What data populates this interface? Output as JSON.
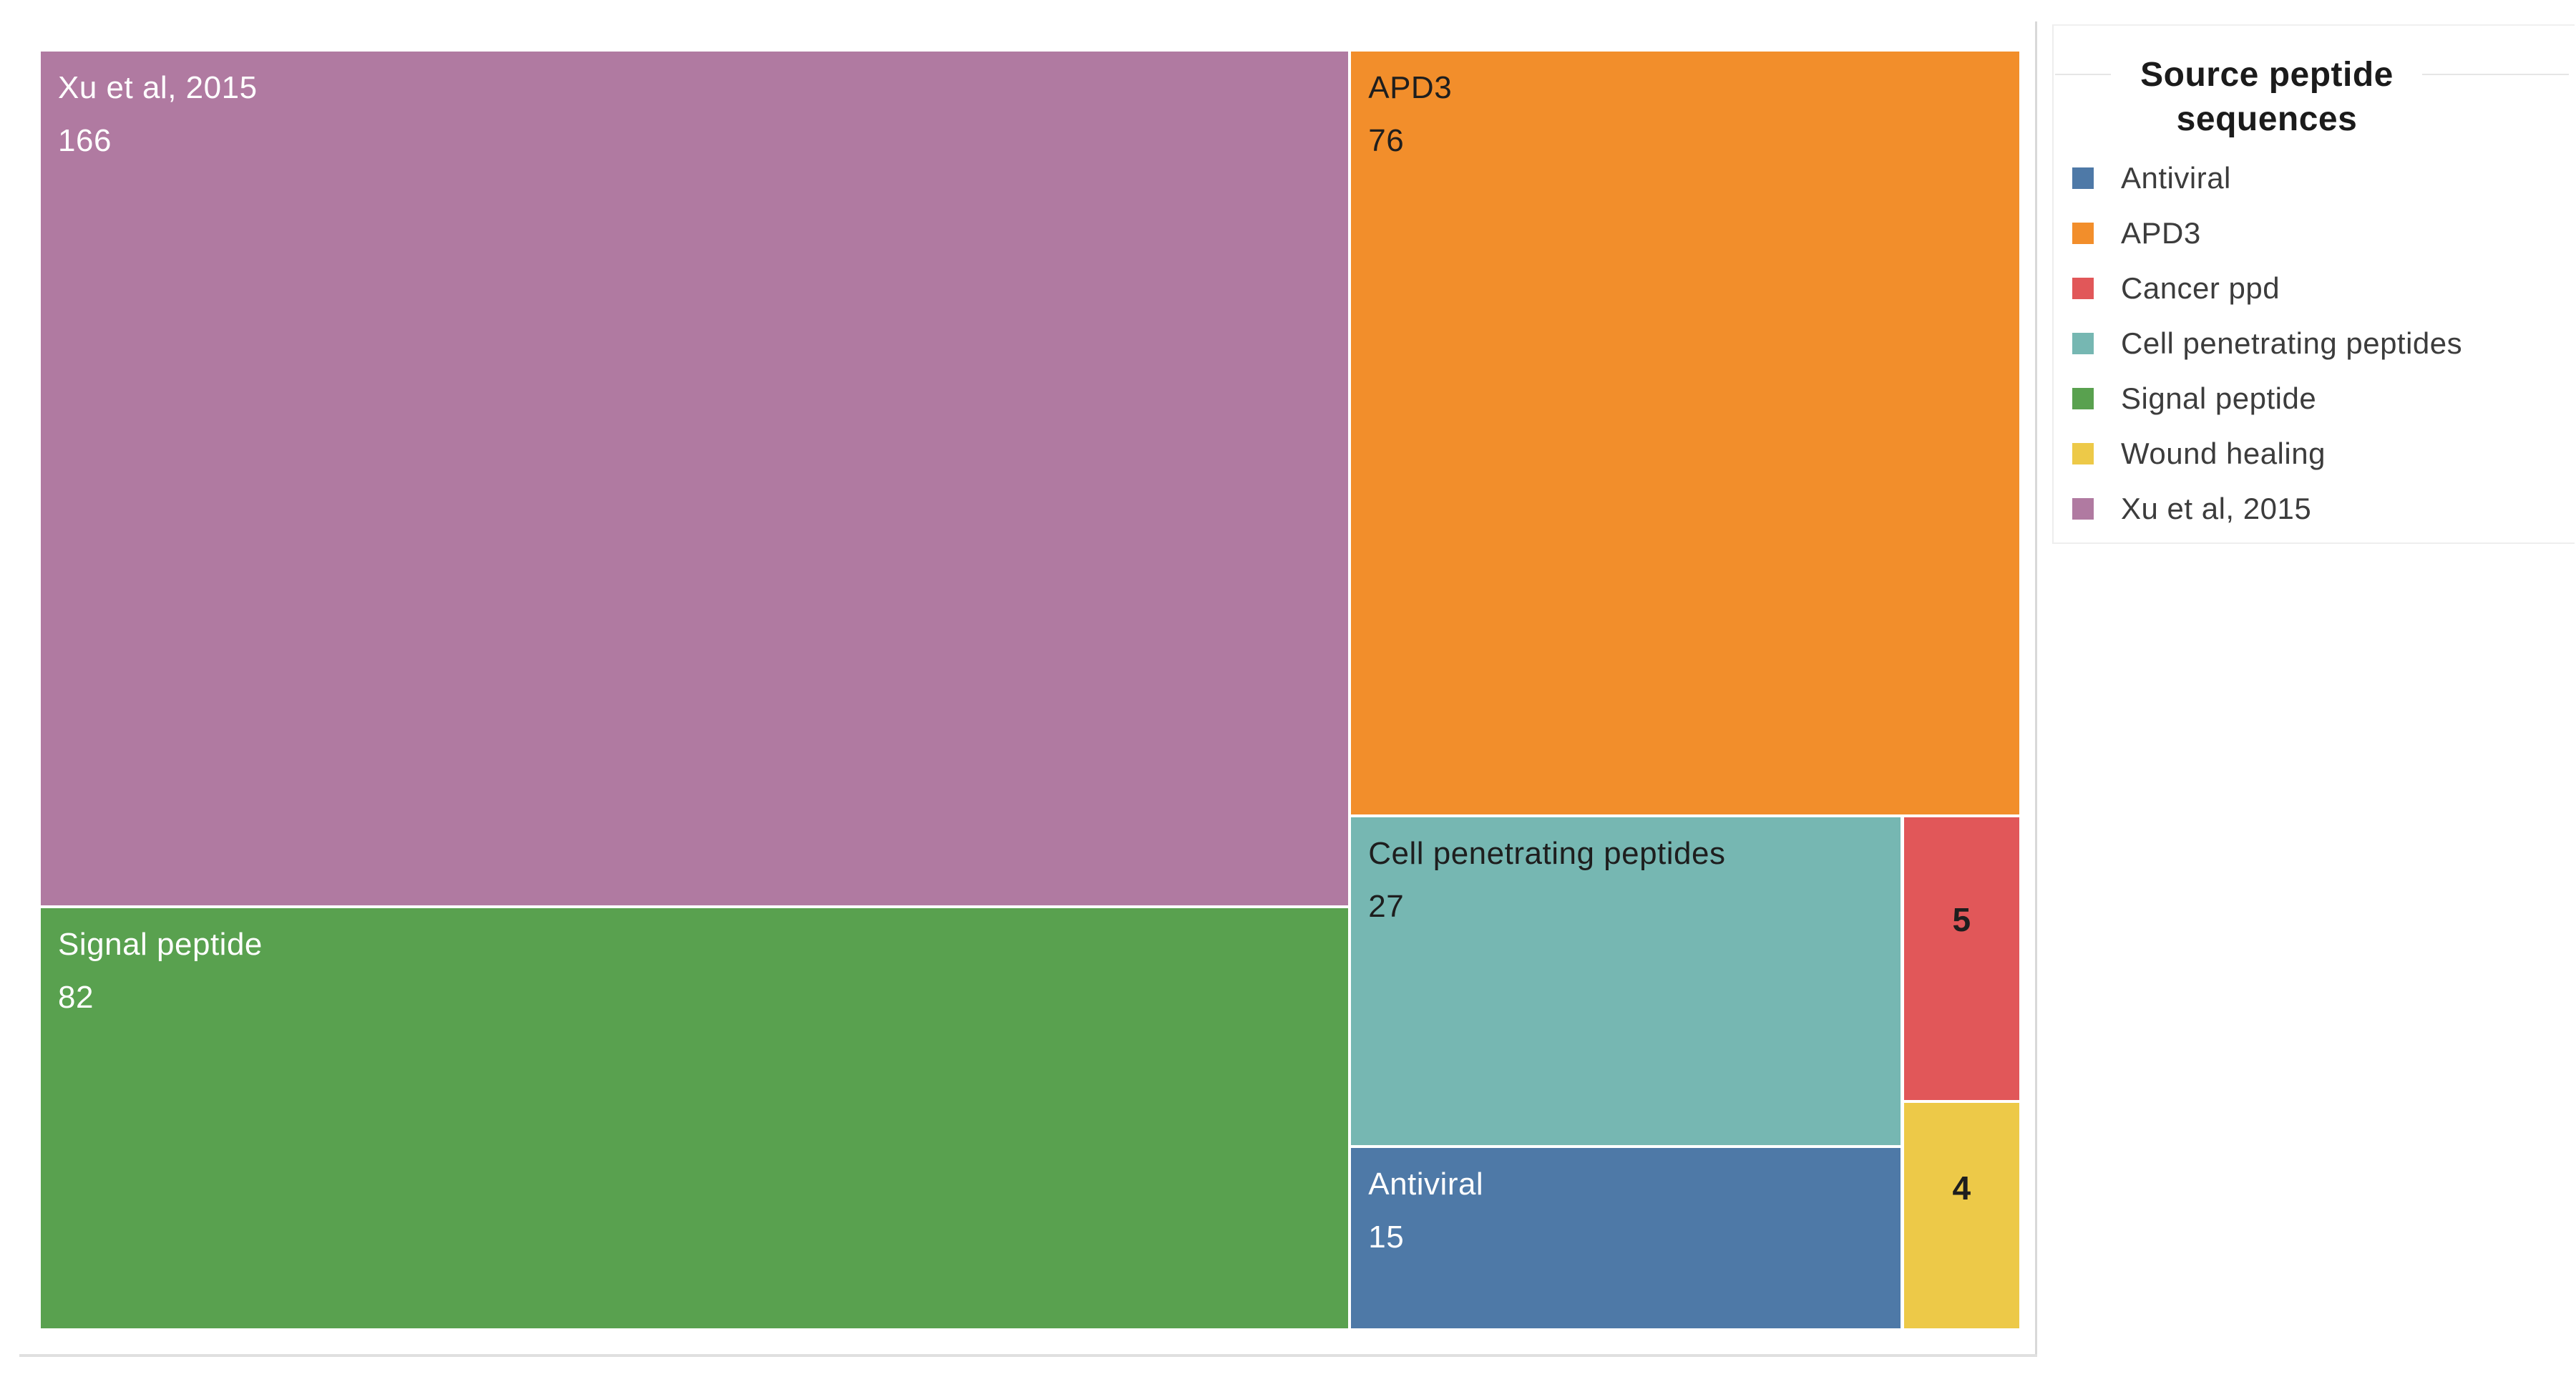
{
  "legend": {
    "title_line1": "Source peptide",
    "title_line2": "sequences",
    "items": [
      {
        "label": "Antiviral",
        "color": "#4e79a7"
      },
      {
        "label": "APD3",
        "color": "#f28e2b"
      },
      {
        "label": "Cancer ppd",
        "color": "#e15759"
      },
      {
        "label": "Cell penetrating peptides",
        "color": "#76b7b2"
      },
      {
        "label": "Signal peptide",
        "color": "#59a14f"
      },
      {
        "label": "Wound healing",
        "color": "#edc948"
      },
      {
        "label": "Xu et al, 2015",
        "color": "#b07aa1"
      }
    ]
  },
  "chart_data": {
    "type": "treemap",
    "title": "Source peptide sequences",
    "legend_position": "right",
    "items": [
      {
        "name": "Xu et al, 2015",
        "value": 166,
        "color": "#b07aa1",
        "text_color": "#ffffff",
        "label_mode": "corner"
      },
      {
        "name": "Signal peptide",
        "value": 82,
        "color": "#59a14f",
        "text_color": "#ffffff",
        "label_mode": "corner"
      },
      {
        "name": "APD3",
        "value": 76,
        "color": "#f28e2b",
        "text_color": "#1e1e1e",
        "label_mode": "corner"
      },
      {
        "name": "Cell penetrating peptides",
        "value": 27,
        "color": "#76b7b2",
        "text_color": "#1e1e1e",
        "label_mode": "corner"
      },
      {
        "name": "Antiviral",
        "value": 15,
        "color": "#4e79a7",
        "text_color": "#ffffff",
        "label_mode": "corner"
      },
      {
        "name": "Cancer ppd",
        "value": 5,
        "color": "#e15759",
        "text_color": "#1e1e1e",
        "label_mode": "value-center"
      },
      {
        "name": "Wound healing",
        "value": 4,
        "color": "#edc948",
        "text_color": "#1e1e1e",
        "label_mode": "value-center"
      }
    ]
  }
}
